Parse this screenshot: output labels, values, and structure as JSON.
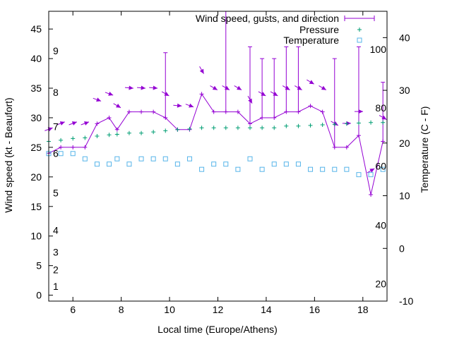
{
  "chart_data": {
    "type": "line",
    "title": "Wind speed, gusts, and direction",
    "xlabel": "Local time (Europe/Athens)",
    "ylabel": "Wind speed (kt - Beaufort)",
    "y2label": "Temperature (C - F)",
    "xlim": [
      5,
      19
    ],
    "ylim": [
      -1,
      48
    ],
    "y2lim": [
      -10,
      45
    ],
    "x_ticks": [
      "6",
      "8",
      "10",
      "12",
      "14",
      "16",
      "18"
    ],
    "y_ticks": [
      "0",
      "5",
      "10",
      "15",
      "20",
      "25",
      "30",
      "35",
      "40",
      "45"
    ],
    "y2_ticks": [
      "-10",
      "0",
      "10",
      "20",
      "30",
      "40"
    ],
    "beaufort_labels": [
      {
        "text": "1",
        "at": 1.5
      },
      {
        "text": "2",
        "at": 4.3
      },
      {
        "text": "3",
        "at": 7.3
      },
      {
        "text": "4",
        "at": 11.0
      },
      {
        "text": "5",
        "at": 17.3
      },
      {
        "text": "6",
        "at": 24.0
      },
      {
        "text": "7",
        "at": 28.5
      },
      {
        "text": "8",
        "at": 34.3
      },
      {
        "text": "9",
        "at": 41.3
      }
    ],
    "fahrenheit_labels": [
      {
        "text": "20",
        "at": -6.7
      },
      {
        "text": "40",
        "at": 4.4
      },
      {
        "text": "60",
        "at": 15.6
      },
      {
        "text": "80",
        "at": 26.7
      },
      {
        "text": "100",
        "at": 37.8
      }
    ],
    "legend": [
      "Wind speed, gusts, and direction",
      "Pressure",
      "Temperature"
    ],
    "colors": {
      "wind": "#9400d3",
      "pressure": "#009e73",
      "temperature": "#56b4e9",
      "axis": "#000000"
    },
    "series": [
      {
        "name": "Wind speed",
        "x": [
          5.0,
          5.5,
          6.0,
          6.5,
          7.0,
          7.5,
          7.83,
          8.33,
          8.83,
          9.33,
          9.83,
          10.33,
          10.83,
          11.33,
          11.83,
          12.33,
          12.83,
          13.33,
          13.83,
          14.33,
          14.83,
          15.33,
          15.83,
          16.33,
          16.83,
          17.33,
          17.83,
          18.33,
          18.83
        ],
        "values": [
          24,
          25,
          25,
          25,
          29,
          30,
          28,
          31,
          31,
          31,
          30,
          28,
          28,
          34,
          31,
          31,
          31,
          29,
          30,
          30,
          31,
          31,
          32,
          31,
          25,
          25,
          27,
          17,
          26
        ],
        "gusts": [
          null,
          null,
          null,
          null,
          null,
          null,
          null,
          null,
          null,
          null,
          41,
          null,
          null,
          null,
          null,
          48,
          null,
          42,
          40,
          40,
          42,
          42,
          null,
          null,
          40,
          null,
          42,
          null,
          36
        ],
        "direction_deg": [
          250,
          250,
          250,
          250,
          290,
          290,
          300,
          275,
          275,
          275,
          300,
          275,
          290,
          330,
          300,
          300,
          300,
          330,
          300,
          300,
          300,
          300,
          300,
          300,
          300,
          270,
          270,
          240,
          300
        ]
      },
      {
        "name": "Pressure",
        "x": [
          5.0,
          5.5,
          6.0,
          6.5,
          7.0,
          7.5,
          7.83,
          8.33,
          8.83,
          9.33,
          9.83,
          10.33,
          10.83,
          11.33,
          11.83,
          12.33,
          12.83,
          13.33,
          13.83,
          14.33,
          14.83,
          15.33,
          15.83,
          16.33,
          16.83,
          17.33,
          17.83,
          18.33,
          18.83
        ],
        "values": [
          26.0,
          26.2,
          26.5,
          26.6,
          26.9,
          27.1,
          27.2,
          27.4,
          27.4,
          27.6,
          27.8,
          28.0,
          28.1,
          28.3,
          28.3,
          28.3,
          28.3,
          28.3,
          28.3,
          28.3,
          28.6,
          28.6,
          28.7,
          28.8,
          28.9,
          29.0,
          29.1,
          29.2,
          29.2
        ]
      },
      {
        "name": "Temperature",
        "x": [
          5.0,
          5.5,
          6.0,
          6.5,
          7.0,
          7.5,
          7.83,
          8.33,
          8.83,
          9.33,
          9.83,
          10.33,
          10.83,
          11.33,
          11.83,
          12.33,
          12.83,
          13.33,
          13.83,
          14.33,
          14.83,
          15.33,
          15.83,
          16.33,
          16.83,
          17.33,
          17.83,
          18.33,
          18.83
        ],
        "values": [
          18,
          18,
          18,
          17,
          16,
          16,
          17,
          16,
          17,
          17,
          17,
          16,
          17,
          15,
          16,
          16,
          15,
          17,
          15,
          16,
          16,
          16,
          15,
          15,
          15,
          15,
          14,
          14,
          15
        ]
      }
    ]
  }
}
